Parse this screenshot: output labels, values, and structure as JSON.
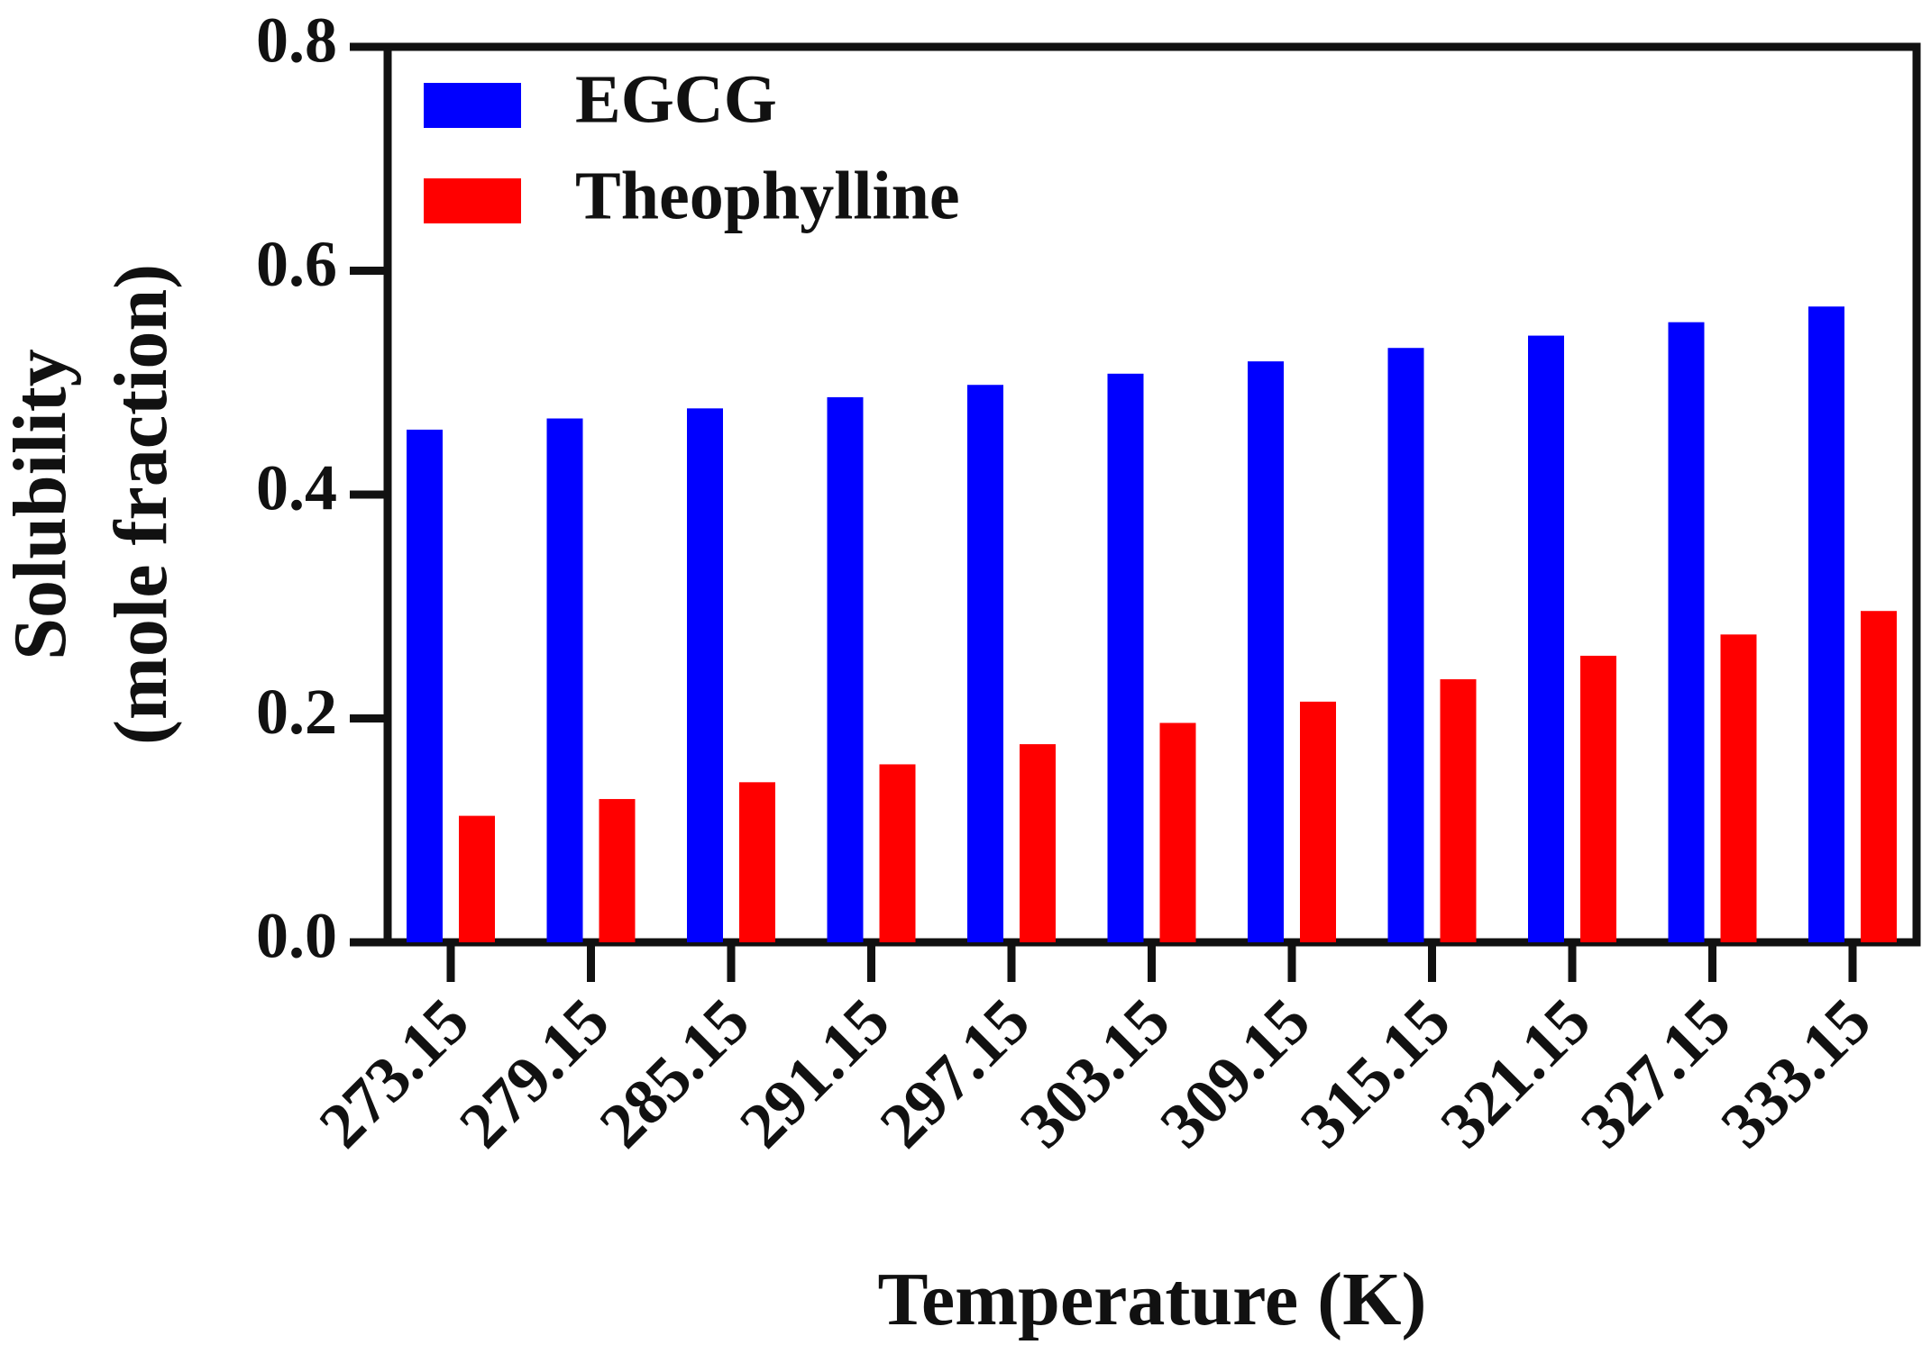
{
  "chart_data": {
    "type": "bar",
    "title": "",
    "xlabel": "Temperature (K)",
    "ylabel_lines": [
      "Solubility",
      "(mole fraction)"
    ],
    "categories": [
      "273.15",
      "279.15",
      "285.15",
      "291.15",
      "297.15",
      "303.15",
      "309.15",
      "315.15",
      "321.15",
      "327.15",
      "333.15"
    ],
    "series": [
      {
        "name": "EGCG",
        "color": "#0000ff",
        "values": [
          0.458,
          0.468,
          0.477,
          0.487,
          0.498,
          0.508,
          0.519,
          0.531,
          0.542,
          0.554,
          0.568
        ]
      },
      {
        "name": "Theophylline",
        "color": "#ff0000",
        "values": [
          0.113,
          0.128,
          0.143,
          0.159,
          0.177,
          0.196,
          0.215,
          0.235,
          0.256,
          0.275,
          0.296
        ]
      }
    ],
    "yticks": [
      "0.0",
      "0.2",
      "0.4",
      "0.6",
      "0.8"
    ],
    "ylim": [
      0,
      0.8
    ],
    "grid": false,
    "legend_position": "top-left"
  }
}
